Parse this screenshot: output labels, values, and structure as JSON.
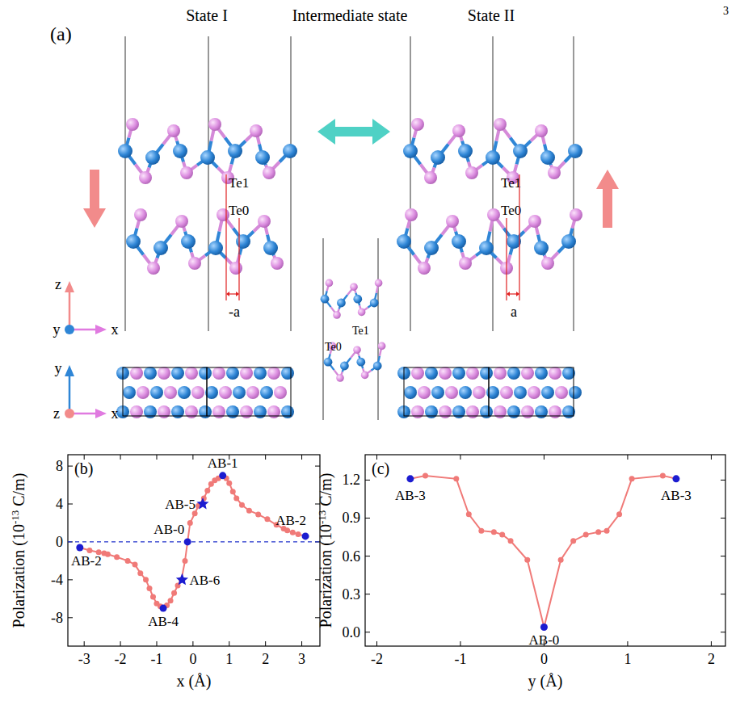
{
  "page_number": "3",
  "panel_a": {
    "label": "(a)",
    "titles": [
      "State I",
      "Intermediate state",
      "State II"
    ],
    "te1": "Te1",
    "te0": "Te0",
    "shift_left": "-a",
    "shift_right": "a",
    "axes_side": {
      "up": "z",
      "out": "y",
      "right": "x"
    },
    "axes_top": {
      "up": "y",
      "out": "z",
      "right": "x"
    }
  },
  "chart_data": [
    {
      "type": "line",
      "panel_label": "(b)",
      "xlabel": "x (Å)",
      "ylabel": [
        "Polarization (10",
        "-13",
        " C/m)"
      ],
      "xlim": [
        -3.45,
        3.5
      ],
      "ylim": [
        -11,
        9.2
      ],
      "xticks": [
        -3,
        -2,
        -1,
        0,
        1,
        2,
        3
      ],
      "yticks": [
        -8,
        -4,
        0,
        4,
        8
      ],
      "hlines": [
        {
          "y": 0,
          "color": "#2233cc",
          "line_style": "dashed"
        }
      ],
      "series": [
        {
          "type": "line",
          "color": "#f07a78",
          "marker": "circle",
          "x": [
            -3.12,
            -2.85,
            -2.6,
            -2.45,
            -2.35,
            -2.1,
            -1.8,
            -1.6,
            -1.45,
            -1.3,
            -1.2,
            -1.1,
            -1.0,
            -0.9,
            -0.82,
            -0.72,
            -0.62,
            -0.52,
            -0.42,
            -0.32,
            -0.22,
            -0.15,
            -0.08,
            0.05,
            0.15,
            0.3,
            0.4,
            0.5,
            0.6,
            0.7,
            0.82,
            0.92,
            1.0,
            1.1,
            1.2,
            1.35,
            1.55,
            1.8,
            2.05,
            2.3,
            2.5,
            2.6,
            2.75,
            2.9,
            3.1
          ],
          "values": [
            -0.6,
            -0.9,
            -1.1,
            -1.2,
            -1.3,
            -1.6,
            -2.0,
            -2.4,
            -3.3,
            -4.0,
            -4.9,
            -5.8,
            -6.5,
            -6.8,
            -7.0,
            -6.7,
            -6.2,
            -5.4,
            -4.6,
            -4.0,
            -2.0,
            0.0,
            2.0,
            3.0,
            3.8,
            4.6,
            5.4,
            6.1,
            6.5,
            6.7,
            7.0,
            6.7,
            6.2,
            5.3,
            4.6,
            3.9,
            3.3,
            2.9,
            2.4,
            1.8,
            1.4,
            1.2,
            1.0,
            0.8,
            0.6
          ]
        },
        {
          "type": "scatter",
          "color": "#1c1cd0",
          "marker": "circle",
          "x": [
            -3.12,
            -0.82,
            -0.15,
            0.82,
            3.1
          ],
          "values": [
            -0.6,
            -7.0,
            0.0,
            7.0,
            0.6
          ],
          "point_labels": [
            "AB-2",
            "AB-4",
            "AB-0",
            "AB-1",
            "AB-2"
          ]
        },
        {
          "type": "scatter",
          "color": "#1c1cd0",
          "marker": "star",
          "x": [
            0.27,
            -0.3
          ],
          "values": [
            4.0,
            -4.0
          ],
          "point_labels": [
            "AB-5",
            "AB-6"
          ]
        }
      ]
    },
    {
      "type": "line",
      "panel_label": "(c)",
      "xlabel": "y (Å)",
      "ylabel": [
        "Polarization (10",
        "-13",
        " C/m)"
      ],
      "xlim": [
        -2.14,
        2.17
      ],
      "ylim": [
        -0.11,
        1.4
      ],
      "xticks": [
        -2,
        -1,
        0,
        1,
        2
      ],
      "yticks": [
        {
          "value": 0,
          "label": "0.0"
        },
        0.3,
        0.6,
        0.9,
        1.2
      ],
      "series": [
        {
          "type": "line",
          "color": "#f07a78",
          "marker": "circle",
          "x": [
            -1.6,
            -1.42,
            -1.05,
            -0.9,
            -0.75,
            -0.6,
            -0.5,
            -0.4,
            -0.2,
            0.0,
            0.2,
            0.35,
            0.5,
            0.65,
            0.75,
            0.9,
            1.05,
            1.42,
            1.58
          ],
          "values": [
            1.21,
            1.235,
            1.21,
            0.93,
            0.8,
            0.79,
            0.77,
            0.72,
            0.57,
            0.04,
            0.57,
            0.72,
            0.77,
            0.79,
            0.8,
            0.93,
            1.21,
            1.235,
            1.21
          ]
        },
        {
          "type": "scatter",
          "color": "#1c1cd0",
          "marker": "circle",
          "x": [
            -1.6,
            0.0,
            1.58
          ],
          "values": [
            1.21,
            0.04,
            1.21
          ],
          "point_labels": [
            "AB-3",
            "AB-0",
            "AB-3"
          ]
        }
      ]
    }
  ]
}
